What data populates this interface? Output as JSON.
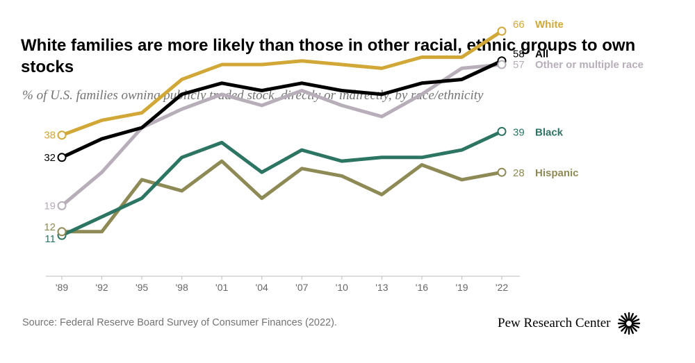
{
  "title": "White families are more likely than those in other racial, ethnic groups to own stocks",
  "subtitle": "% of U.S. families owning publicly traded stock, directly or indirectly, by race/ethnicity",
  "source": "Source: Federal Reserve Board Survey of Consumer Finances (2022).",
  "logo": {
    "text": "Pew Research Center",
    "icon": "pew-sunburst-icon"
  },
  "chart_data": {
    "type": "line",
    "title": "White families are more likely than those in other racial, ethnic groups to own stocks",
    "subtitle": "% of U.S. families owning publicly traded stock, directly or indirectly, by race/ethnicity",
    "xlabel": "",
    "ylabel": "",
    "ylim": [
      0,
      75
    ],
    "grid": false,
    "categories": [
      "'89",
      "'92",
      "'95",
      "'98",
      "'01",
      "'04",
      "'07",
      "'10",
      "'13",
      "'16",
      "'19",
      "'22"
    ],
    "series": [
      {
        "name": "White",
        "color": "#D1A838",
        "values": [
          38,
          42,
          44,
          53,
          57,
          57,
          58,
          57,
          56,
          59,
          59,
          66
        ],
        "start_label": "38",
        "end_label": "66"
      },
      {
        "name": "All",
        "color": "#000000",
        "values": [
          32,
          37,
          40,
          49,
          52,
          50,
          52,
          50,
          49,
          52,
          53,
          58
        ],
        "start_label": "32",
        "end_label": "58"
      },
      {
        "name": "Other or multiple race",
        "color": "#B7AEBA",
        "values": [
          19,
          28,
          40,
          45,
          49,
          46,
          50,
          46,
          43,
          49,
          56,
          57
        ],
        "start_label": "19",
        "end_label": "57"
      },
      {
        "name": "Black",
        "color": "#2C7563",
        "values": [
          11,
          16,
          21,
          32,
          36,
          28,
          34,
          31,
          32,
          32,
          34,
          39
        ],
        "start_label": "11",
        "end_label": "39"
      },
      {
        "name": "Hispanic",
        "color": "#8E8A55",
        "values": [
          12,
          12,
          26,
          23,
          31,
          21,
          29,
          27,
          22,
          30,
          26,
          28
        ],
        "start_label": "12",
        "end_label": "28"
      }
    ]
  }
}
